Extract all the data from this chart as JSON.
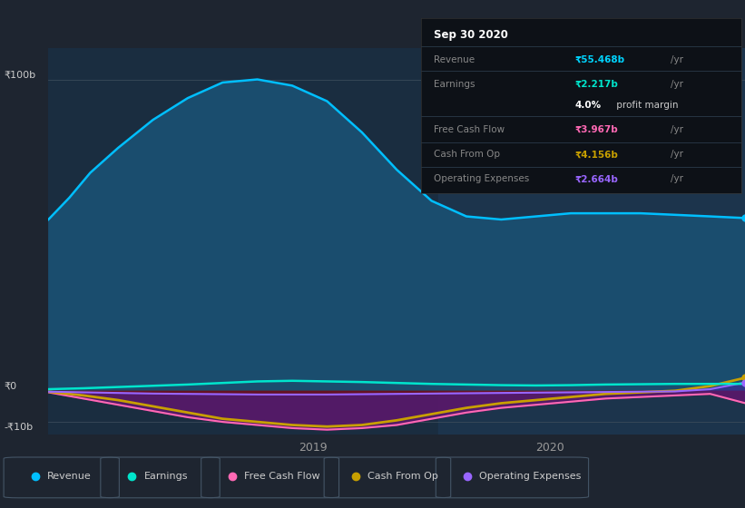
{
  "bg_color": "#1e2530",
  "chart_bg": "#1a2d40",
  "chart_bg_right": "#1e3550",
  "info_bg": "#0d1117",
  "date_label": "Sep 30 2020",
  "revenue_color": "#00bfff",
  "revenue_fill": "#1a4d6e",
  "earnings_color": "#00e5cc",
  "fcf_color": "#ff69b4",
  "fcf_fill": "#6b1020",
  "cfo_color": "#c8a000",
  "opex_color": "#9966ff",
  "opex_fill": "#4422aa",
  "series_revenue_x": [
    0,
    0.3,
    0.6,
    1.0,
    1.5,
    2.0,
    2.5,
    3.0,
    3.5,
    4.0,
    4.5,
    5.0,
    5.5,
    6.0,
    6.5,
    7.0,
    7.5,
    8.0,
    8.5,
    9.0,
    9.5,
    10.0
  ],
  "series_revenue_y": [
    55,
    62,
    70,
    78,
    87,
    94,
    99,
    100,
    98,
    93,
    83,
    71,
    61,
    56,
    55,
    56,
    57,
    57,
    57,
    56.5,
    56,
    55.468
  ],
  "series_earnings_x": [
    0,
    0.5,
    1.0,
    1.5,
    2.0,
    2.5,
    3.0,
    3.5,
    4.0,
    4.5,
    5.0,
    5.5,
    6.0,
    6.5,
    7.0,
    7.5,
    8.0,
    8.5,
    9.0,
    9.5,
    10.0
  ],
  "series_earnings_y": [
    0.5,
    0.8,
    1.2,
    1.6,
    2.0,
    2.5,
    3.0,
    3.2,
    3.0,
    2.8,
    2.5,
    2.2,
    2.0,
    1.8,
    1.7,
    1.8,
    2.0,
    2.1,
    2.2,
    2.2,
    2.217
  ],
  "series_fcf_x": [
    0,
    0.5,
    1.0,
    1.5,
    2.0,
    2.5,
    3.0,
    3.5,
    4.0,
    4.5,
    5.0,
    5.5,
    6.0,
    6.5,
    7.0,
    7.5,
    8.0,
    8.5,
    9.0,
    9.5,
    10.0
  ],
  "series_fcf_y": [
    -0.5,
    -2.5,
    -4.5,
    -6.5,
    -8.5,
    -10.0,
    -11.0,
    -12.0,
    -12.5,
    -12.0,
    -11.0,
    -9.0,
    -7.0,
    -5.5,
    -4.5,
    -3.5,
    -2.5,
    -2.0,
    -1.5,
    -1.0,
    -3.967
  ],
  "series_cfo_x": [
    0,
    0.5,
    1.0,
    1.5,
    2.0,
    2.5,
    3.0,
    3.5,
    4.0,
    4.5,
    5.0,
    5.5,
    6.0,
    6.5,
    7.0,
    7.5,
    8.0,
    8.5,
    9.0,
    9.5,
    10.0
  ],
  "series_cfo_y": [
    -0.3,
    -1.5,
    -3.0,
    -5.0,
    -7.0,
    -9.0,
    -10.0,
    -11.0,
    -11.5,
    -11.0,
    -9.5,
    -7.5,
    -5.5,
    -4.0,
    -3.0,
    -2.0,
    -1.0,
    -0.5,
    0.0,
    1.5,
    4.156
  ],
  "series_opex_x": [
    0,
    0.5,
    1.0,
    1.5,
    2.0,
    2.5,
    3.0,
    3.5,
    4.0,
    4.5,
    5.0,
    5.5,
    6.0,
    6.5,
    7.0,
    7.5,
    8.0,
    8.5,
    9.0,
    9.5,
    10.0
  ],
  "series_opex_y": [
    -0.3,
    -0.5,
    -0.7,
    -0.9,
    -1.0,
    -1.1,
    -1.2,
    -1.2,
    -1.2,
    -1.1,
    -1.0,
    -0.9,
    -0.8,
    -0.7,
    -0.6,
    -0.5,
    -0.4,
    -0.3,
    -0.2,
    0.5,
    2.664
  ],
  "x_min": 0,
  "x_max": 10,
  "y_min": -14,
  "y_max": 110,
  "shade_start_x": 5.6,
  "tick_2019_x": 3.8,
  "tick_2020_x": 7.2,
  "y_100_label": "₹100b",
  "y_0_label": "₹0",
  "y_n10_label": "-₹10b",
  "legend": [
    {
      "label": "Revenue",
      "color": "#00bfff"
    },
    {
      "label": "Earnings",
      "color": "#00e5cc"
    },
    {
      "label": "Free Cash Flow",
      "color": "#ff69b4"
    },
    {
      "label": "Cash From Op",
      "color": "#c8a000"
    },
    {
      "label": "Operating Expenses",
      "color": "#9966ff"
    }
  ]
}
